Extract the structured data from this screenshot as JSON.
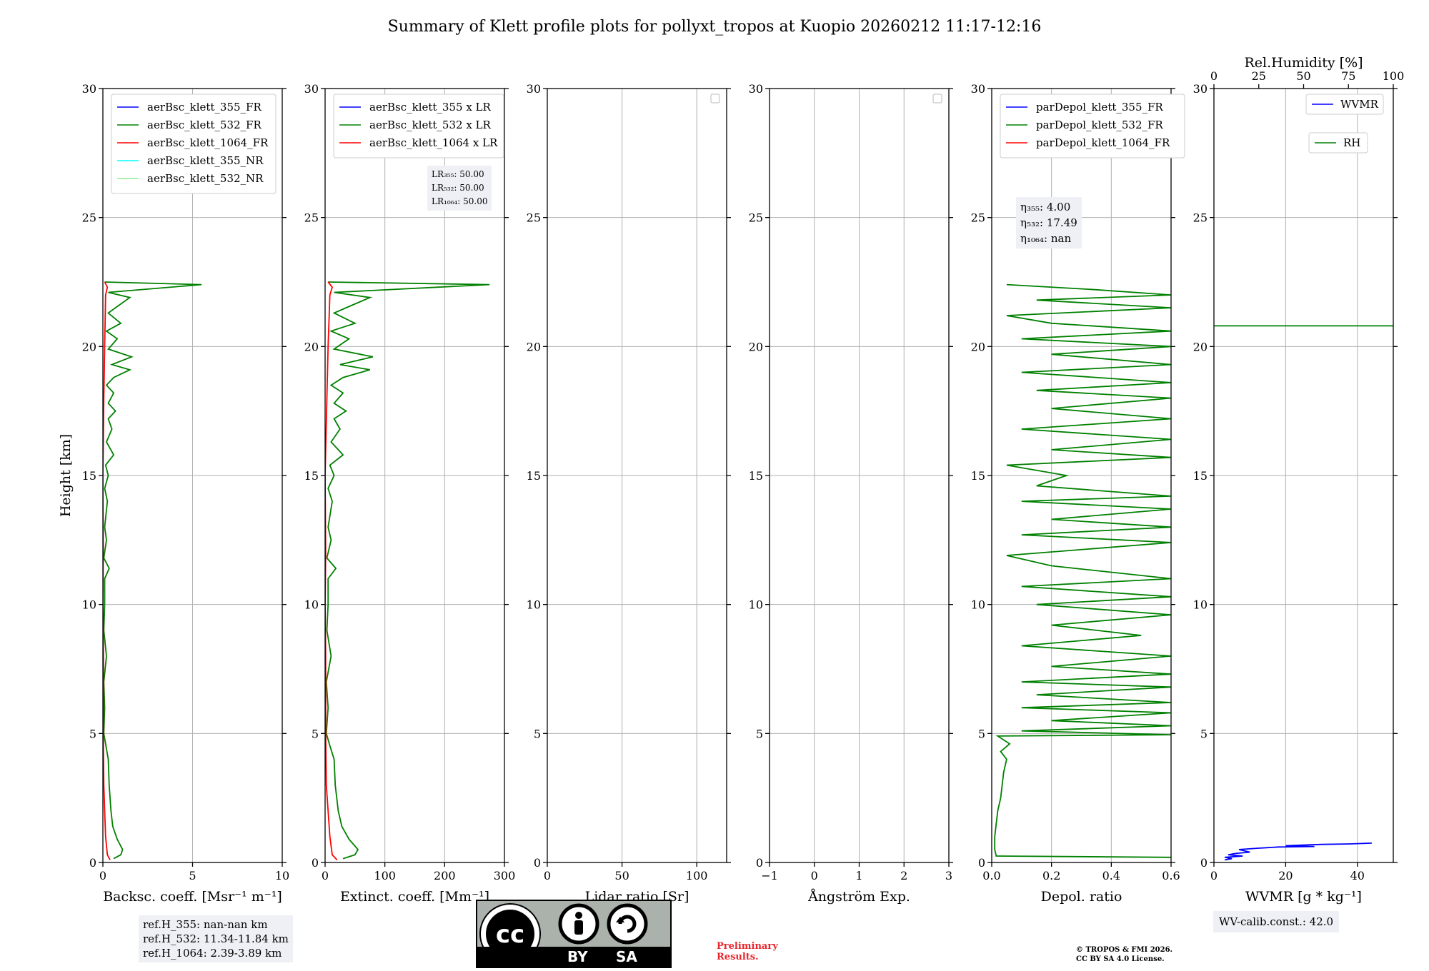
{
  "figure_title": "Summary of Klett profile plots for pollyxt_tropos at Kuopio 20260212 11:17-12:16",
  "chart_data": [
    {
      "type": "line",
      "id": "backscatter",
      "xlabel": "Backsc. coeff. [Msr⁻¹ m⁻¹]",
      "ylabel": "Height [km]",
      "xlim": [
        0,
        10
      ],
      "ylim": [
        0,
        30
      ],
      "xticks": [
        0,
        5,
        10
      ],
      "yticks": [
        0,
        5,
        10,
        15,
        20,
        25,
        30
      ],
      "grid": true,
      "legend_position": "top-left",
      "series": [
        {
          "name": "aerBsc_klett_355_FR",
          "color": "#0000ff",
          "points": []
        },
        {
          "name": "aerBsc_klett_532_FR",
          "color": "#008000",
          "points": [
            [
              0.6,
              0.15
            ],
            [
              1.0,
              0.3
            ],
            [
              1.1,
              0.5
            ],
            [
              0.8,
              0.9
            ],
            [
              0.55,
              1.4
            ],
            [
              0.45,
              2.0
            ],
            [
              0.35,
              3.0
            ],
            [
              0.3,
              4.0
            ],
            [
              0.15,
              4.6
            ],
            [
              0.05,
              5
            ],
            [
              0.1,
              6
            ],
            [
              0.05,
              7
            ],
            [
              0.2,
              8
            ],
            [
              0.05,
              9
            ],
            [
              0.1,
              10
            ],
            [
              0.1,
              11
            ],
            [
              0.35,
              11.4
            ],
            [
              0.05,
              11.8
            ],
            [
              0.2,
              12.5
            ],
            [
              0.1,
              13
            ],
            [
              0.25,
              14
            ],
            [
              0.1,
              14.5
            ],
            [
              0.3,
              15
            ],
            [
              0.15,
              15.4
            ],
            [
              0.6,
              15.8
            ],
            [
              0.2,
              16.3
            ],
            [
              0.5,
              16.8
            ],
            [
              0.3,
              17.2
            ],
            [
              0.7,
              17.5
            ],
            [
              0.3,
              17.8
            ],
            [
              0.6,
              18.2
            ],
            [
              0.2,
              18.5
            ],
            [
              0.6,
              18.8
            ],
            [
              1.5,
              19.1
            ],
            [
              0.5,
              19.3
            ],
            [
              1.6,
              19.6
            ],
            [
              0.3,
              19.9
            ],
            [
              0.8,
              20.3
            ],
            [
              0.2,
              20.6
            ],
            [
              1.0,
              20.9
            ],
            [
              0.3,
              21.3
            ],
            [
              0.9,
              21.6
            ],
            [
              1.5,
              21.9
            ],
            [
              0.3,
              22.1
            ],
            [
              5.5,
              22.4
            ],
            [
              0.1,
              22.5
            ]
          ]
        },
        {
          "name": "aerBsc_klett_1064_FR",
          "color": "#ff0000",
          "points": [
            [
              0.4,
              0.1
            ],
            [
              0.25,
              0.3
            ],
            [
              0.15,
              1.0
            ],
            [
              0.1,
              2.0
            ],
            [
              0.05,
              3.0
            ],
            [
              0.02,
              5.0
            ],
            [
              0.03,
              8.0
            ],
            [
              0.0,
              10.0
            ],
            [
              0.02,
              12.0
            ],
            [
              0.0,
              15.0
            ],
            [
              0.05,
              18.0
            ],
            [
              0.1,
              20.0
            ],
            [
              0.15,
              22.0
            ],
            [
              0.25,
              22.3
            ],
            [
              0.1,
              22.5
            ]
          ]
        },
        {
          "name": "aerBsc_klett_355_NR",
          "color": "#00ffff",
          "points": []
        },
        {
          "name": "aerBsc_klett_532_NR",
          "color": "#90ee90",
          "points": []
        }
      ],
      "ref_heights": [
        "ref.H_355: nan-nan km",
        "ref.H_532: 11.34-11.84 km",
        "ref.H_1064: 2.39-3.89 km"
      ]
    },
    {
      "type": "line",
      "id": "extinction",
      "xlabel": "Extinct. coeff. [Mm⁻¹]",
      "xlim": [
        0,
        300
      ],
      "ylim": [
        0,
        30
      ],
      "xticks": [
        0,
        100,
        200,
        300
      ],
      "yticks": [
        0,
        5,
        10,
        15,
        20,
        25,
        30
      ],
      "grid": true,
      "legend_position": "top-left",
      "series": [
        {
          "name": "aerBsc_klett_355 x LR",
          "color": "#0000ff",
          "points": []
        },
        {
          "name": "aerBsc_klett_532 x LR",
          "color": "#008000",
          "points": [
            [
              30,
              0.15
            ],
            [
              50,
              0.3
            ],
            [
              55,
              0.5
            ],
            [
              40,
              0.9
            ],
            [
              28,
              1.4
            ],
            [
              22,
              2.0
            ],
            [
              17,
              3.0
            ],
            [
              15,
              4.0
            ],
            [
              7,
              4.6
            ],
            [
              2,
              5
            ],
            [
              5,
              6
            ],
            [
              2,
              7
            ],
            [
              10,
              8
            ],
            [
              3,
              9
            ],
            [
              5,
              10
            ],
            [
              5,
              11
            ],
            [
              18,
              11.4
            ],
            [
              3,
              11.8
            ],
            [
              10,
              12.5
            ],
            [
              5,
              13
            ],
            [
              12,
              14
            ],
            [
              5,
              14.5
            ],
            [
              15,
              15
            ],
            [
              8,
              15.4
            ],
            [
              30,
              15.8
            ],
            [
              10,
              16.3
            ],
            [
              25,
              16.8
            ],
            [
              15,
              17.2
            ],
            [
              35,
              17.5
            ],
            [
              15,
              17.8
            ],
            [
              30,
              18.2
            ],
            [
              10,
              18.5
            ],
            [
              30,
              18.8
            ],
            [
              75,
              19.1
            ],
            [
              25,
              19.3
            ],
            [
              80,
              19.6
            ],
            [
              15,
              19.9
            ],
            [
              40,
              20.3
            ],
            [
              10,
              20.6
            ],
            [
              50,
              20.9
            ],
            [
              15,
              21.3
            ],
            [
              45,
              21.6
            ],
            [
              75,
              21.9
            ],
            [
              15,
              22.1
            ],
            [
              275,
              22.4
            ],
            [
              5,
              22.5
            ]
          ]
        },
        {
          "name": "aerBsc_klett_1064 x LR",
          "color": "#ff0000",
          "points": [
            [
              20,
              0.1
            ],
            [
              12,
              0.3
            ],
            [
              8,
              1.0
            ],
            [
              5,
              2.0
            ],
            [
              2,
              3.0
            ],
            [
              1,
              5.0
            ],
            [
              1,
              8.0
            ],
            [
              0,
              10.0
            ],
            [
              1,
              12.0
            ],
            [
              0,
              15.0
            ],
            [
              3,
              18.0
            ],
            [
              5,
              20.0
            ],
            [
              8,
              22.0
            ],
            [
              12,
              22.3
            ],
            [
              5,
              22.5
            ]
          ]
        }
      ],
      "lr_box": {
        "lr355": "LR₃₅₅: 50.00",
        "lr532": "LR₅₃₂: 50.00",
        "lr1064": "LR₁₀₆₄: 50.00"
      }
    },
    {
      "type": "line",
      "id": "lidar_ratio",
      "xlabel": "Lidar ratio [Sr]",
      "xlim": [
        0,
        120
      ],
      "ylim": [
        0,
        30
      ],
      "xticks": [
        0,
        50,
        100
      ],
      "yticks": [
        0,
        5,
        10,
        15,
        20,
        25,
        30
      ],
      "grid": true,
      "legend_position": "top-right",
      "series": []
    },
    {
      "type": "line",
      "id": "angstrom",
      "xlabel": "Ångström Exp.",
      "xlim": [
        -1,
        3
      ],
      "ylim": [
        0,
        30
      ],
      "xticks": [
        -1,
        0,
        1,
        2,
        3
      ],
      "yticks": [
        0,
        5,
        10,
        15,
        20,
        25,
        30
      ],
      "grid": true,
      "legend_position": "top-right",
      "series": []
    },
    {
      "type": "line",
      "id": "depol",
      "xlabel": "Depol. ratio",
      "xlim": [
        0,
        0.6
      ],
      "ylim": [
        0,
        30
      ],
      "xticks": [
        0.0,
        0.2,
        0.4,
        0.6
      ],
      "yticks": [
        0,
        5,
        10,
        15,
        20,
        25,
        30
      ],
      "grid": true,
      "legend_position": "top-left",
      "series": [
        {
          "name": "parDepol_klett_355_FR",
          "color": "#0000ff",
          "points": []
        },
        {
          "name": "parDepol_klett_532_FR",
          "color": "#008000",
          "points": [
            [
              0.6,
              0.2
            ],
            [
              0.015,
              0.25
            ],
            [
              0.01,
              0.5
            ],
            [
              0.01,
              1.0
            ],
            [
              0.015,
              1.5
            ],
            [
              0.02,
              2.0
            ],
            [
              0.03,
              2.5
            ],
            [
              0.035,
              3.0
            ],
            [
              0.04,
              3.5
            ],
            [
              0.05,
              4.0
            ],
            [
              0.03,
              4.3
            ],
            [
              0.06,
              4.6
            ],
            [
              0.02,
              4.9
            ],
            [
              0.6,
              4.95
            ],
            [
              0.1,
              5.1
            ],
            [
              0.6,
              5.3
            ],
            [
              0.2,
              5.5
            ],
            [
              0.6,
              5.8
            ],
            [
              0.1,
              6.0
            ],
            [
              0.6,
              6.2
            ],
            [
              0.15,
              6.5
            ],
            [
              0.6,
              6.8
            ],
            [
              0.1,
              7.0
            ],
            [
              0.6,
              7.3
            ],
            [
              0.2,
              7.6
            ],
            [
              0.6,
              8.0
            ],
            [
              0.1,
              8.4
            ],
            [
              0.5,
              8.8
            ],
            [
              0.2,
              9.2
            ],
            [
              0.6,
              9.6
            ],
            [
              0.15,
              10.0
            ],
            [
              0.6,
              10.3
            ],
            [
              0.1,
              10.7
            ],
            [
              0.6,
              11.0
            ],
            [
              0.2,
              11.5
            ],
            [
              0.05,
              11.9
            ],
            [
              0.6,
              12.4
            ],
            [
              0.1,
              12.7
            ],
            [
              0.6,
              13.0
            ],
            [
              0.2,
              13.3
            ],
            [
              0.6,
              13.7
            ],
            [
              0.1,
              14.0
            ],
            [
              0.6,
              14.2
            ],
            [
              0.15,
              14.6
            ],
            [
              0.25,
              15.0
            ],
            [
              0.05,
              15.4
            ],
            [
              0.6,
              15.7
            ],
            [
              0.2,
              16.0
            ],
            [
              0.6,
              16.4
            ],
            [
              0.1,
              16.8
            ],
            [
              0.6,
              17.2
            ],
            [
              0.2,
              17.6
            ],
            [
              0.6,
              18.0
            ],
            [
              0.15,
              18.3
            ],
            [
              0.6,
              18.6
            ],
            [
              0.1,
              19.0
            ],
            [
              0.6,
              19.3
            ],
            [
              0.2,
              19.7
            ],
            [
              0.6,
              20.0
            ],
            [
              0.1,
              20.3
            ],
            [
              0.6,
              20.6
            ],
            [
              0.2,
              20.9
            ],
            [
              0.05,
              21.2
            ],
            [
              0.6,
              21.5
            ],
            [
              0.15,
              21.8
            ],
            [
              0.6,
              22.0
            ],
            [
              0.35,
              22.2
            ],
            [
              0.05,
              22.4
            ]
          ]
        },
        {
          "name": "parDepol_klett_1064_FR",
          "color": "#ff0000",
          "points": []
        }
      ],
      "eta_box": {
        "eta355": "η₃₅₅: 4.00",
        "eta532": "η₅₃₂: 17.49",
        "eta1064": "η₁₀₆₄: nan"
      }
    },
    {
      "type": "line",
      "id": "wvmr",
      "xlabel": "WVMR [g * kg⁻¹]",
      "top_xlabel": "Rel.Humidity [%]",
      "xlim": [
        0,
        50
      ],
      "top_xlim": [
        0,
        100
      ],
      "ylim": [
        0,
        30
      ],
      "xticks": [
        0,
        20,
        40
      ],
      "top_xticks": [
        0,
        25,
        50,
        75,
        100
      ],
      "yticks": [
        0,
        5,
        10,
        15,
        20,
        25,
        30
      ],
      "grid": true,
      "legend_position": "top-right",
      "series": [
        {
          "name": "WVMR",
          "color": "#0000ff",
          "points": [
            [
              3,
              0.1
            ],
            [
              5,
              0.15
            ],
            [
              3,
              0.2
            ],
            [
              8,
              0.25
            ],
            [
              4,
              0.3
            ],
            [
              6,
              0.35
            ],
            [
              10,
              0.4
            ],
            [
              7,
              0.5
            ],
            [
              12,
              0.55
            ],
            [
              18,
              0.6
            ],
            [
              28,
              0.62
            ],
            [
              20,
              0.65
            ],
            [
              30,
              0.7
            ],
            [
              38,
              0.72
            ],
            [
              44,
              0.75
            ]
          ]
        },
        {
          "name": "RH",
          "color": "#008000",
          "points": [
            [
              0,
              20.8
            ],
            [
              100,
              20.8
            ]
          ]
        }
      ],
      "wv_calib": "WV-calib.const.: 42.0"
    }
  ],
  "footer": {
    "preliminary_line1": "Preliminary",
    "preliminary_line2": "Results.",
    "copyright_line1": "© TROPOS & FMI 2026.",
    "copyright_line2": "CC BY SA 4.0 License.",
    "license_by": "BY",
    "license_sa": "SA",
    "license_cc": "cc"
  }
}
